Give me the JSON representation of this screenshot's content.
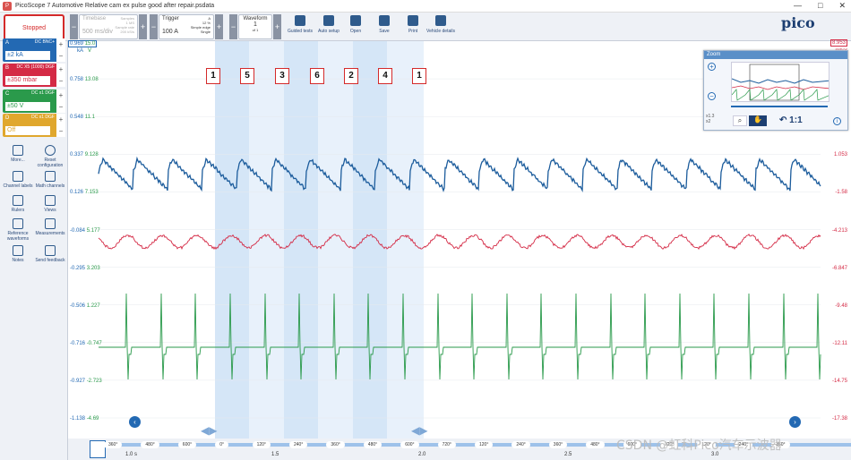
{
  "window": {
    "title": "PicoScope 7 Automotive Relative cam ex pulse good after repair.psdata",
    "controls": [
      "—",
      "□",
      "✕"
    ]
  },
  "toolbar": {
    "status": "Stopped",
    "timebase": {
      "label": "Timebase",
      "value": "500 ms/div",
      "samples": "Samples",
      "samples_val": "1 MS",
      "rate_label": "Sample rate",
      "rate_val": "200 kS/s"
    },
    "trigger": {
      "label": "Trigger",
      "value": "100 A",
      "a": "A",
      "pct": "12 %",
      "mode": "Simple edge",
      "type": "Single"
    },
    "waveform": {
      "label": "Waveform",
      "value": "1",
      "of": "of 1"
    },
    "buttons": [
      "Guided tests",
      "Auto setup",
      "Open",
      "Save",
      "Print",
      "Vehicle details"
    ]
  },
  "channels": [
    {
      "id": "A",
      "coupling": "DC\nBNC+",
      "range": "±2 kA",
      "color": "#2369b3"
    },
    {
      "id": "B",
      "coupling": "DC\nX5 (1000)\nDGF",
      "range": "±350 mbar",
      "color": "#d42a45"
    },
    {
      "id": "C",
      "coupling": "DC\nx1\nDGF",
      "range": "±50 V",
      "color": "#2a9a4b"
    },
    {
      "id": "D",
      "coupling": "DC\nx1\nDGF",
      "range": "Off",
      "color": "#e0a72d"
    }
  ],
  "tools": [
    "More...",
    "Reset configuration",
    "Channel labels",
    "Math channels",
    "Rulers",
    "Views",
    "Reference waveforms",
    "Measurements",
    "Notes",
    "Send feedback"
  ],
  "axis_left": [
    [
      "0.969",
      "15.0"
    ],
    [
      "0.758",
      "13.08"
    ],
    [
      "0.548",
      "11.1"
    ],
    [
      "0.337",
      "9.128"
    ],
    [
      "0.126",
      "7.153"
    ],
    [
      "-0.084",
      "5.177"
    ],
    [
      "-0.295",
      "3.203"
    ],
    [
      "-0.506",
      "1.227"
    ],
    [
      "-0.716",
      "-0.747"
    ],
    [
      "-0.927",
      "-2.723"
    ],
    [
      "-1.138",
      "-4.69"
    ]
  ],
  "axis_left_units": [
    "kA",
    "V"
  ],
  "axis_right": [
    "8.953",
    "6.32",
    "3.687",
    "1.053",
    "-1.58",
    "-4.213",
    "-6.847",
    "-9.48",
    "-12.11",
    "-14.75",
    "-17.38"
  ],
  "axis_right_unit": "mbar",
  "markers": [
    "1",
    "5",
    "3",
    "6",
    "2",
    "4",
    "1"
  ],
  "zoom": {
    "title": "Zoom",
    "ratio": "1:1",
    "x": "x1.3",
    "y": "x2"
  },
  "degrees": [
    "360°",
    "480°",
    "600°",
    "0°",
    "120°",
    "240°",
    "360°",
    "480°",
    "600°",
    "720°",
    "120°",
    "240°",
    "360°",
    "480°",
    "600°",
    "720°",
    "120°",
    "240°",
    "360°"
  ],
  "time_labels": [
    "1.0 s",
    "1.5",
    "2.0",
    "2.5",
    "3.0"
  ],
  "watermark": "CSDN @虹科Pico汽车示波器"
}
